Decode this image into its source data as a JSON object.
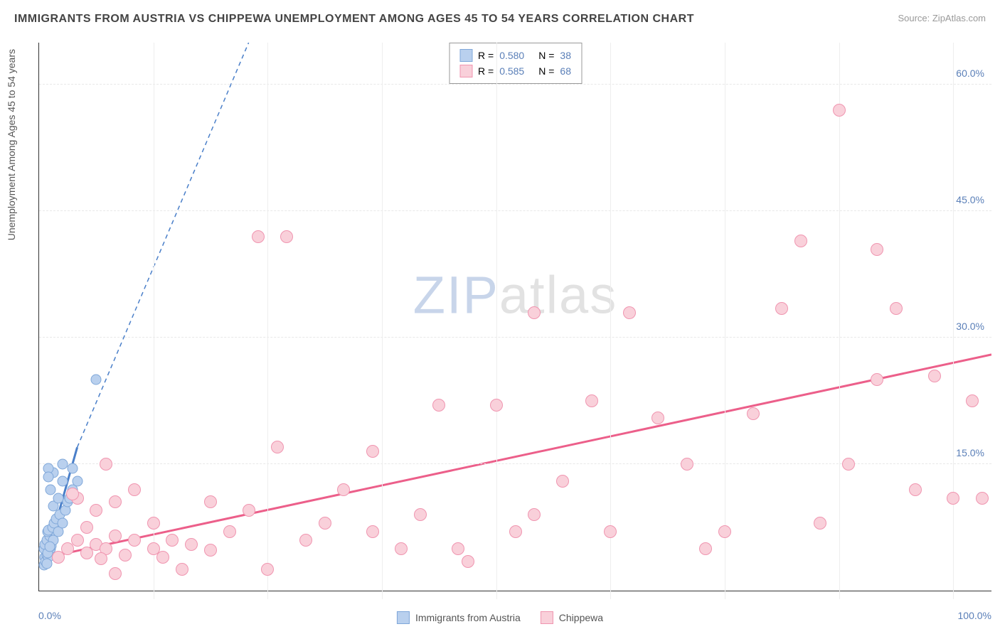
{
  "header": {
    "title": "IMMIGRANTS FROM AUSTRIA VS CHIPPEWA UNEMPLOYMENT AMONG AGES 45 TO 54 YEARS CORRELATION CHART",
    "source": "Source: ZipAtlas.com"
  },
  "chart": {
    "type": "scatter",
    "ylabel": "Unemployment Among Ages 45 to 54 years",
    "xlim": [
      0,
      100
    ],
    "ylim": [
      0,
      65
    ],
    "xticks": [
      {
        "v": 0,
        "label": "0.0%"
      },
      {
        "v": 100,
        "label": "100.0%"
      }
    ],
    "yticks": [
      {
        "v": 15,
        "label": "15.0%"
      },
      {
        "v": 30,
        "label": "30.0%"
      },
      {
        "v": 45,
        "label": "45.0%"
      },
      {
        "v": 60,
        "label": "60.0%"
      }
    ],
    "xgrid": [
      12,
      24,
      36,
      48,
      60,
      72,
      84,
      96
    ],
    "background_color": "#ffffff",
    "grid_color": "#e8e8e8",
    "tick_color": "#5a7fb8",
    "watermark": {
      "zip": "ZIP",
      "atlas": "atlas"
    },
    "series": [
      {
        "name": "Immigrants from Austria",
        "color_fill": "#b9d0ee",
        "color_stroke": "#7fa7d9",
        "marker_size": 15,
        "r": "0.580",
        "n": "38",
        "trend": {
          "x1": 0.5,
          "y1": 3,
          "x2": 4,
          "y2": 17,
          "dash_x2": 22,
          "dash_y2": 65,
          "color": "#4a7fc9",
          "width": 3
        },
        "points": [
          [
            0.5,
            3
          ],
          [
            0.6,
            4
          ],
          [
            0.7,
            3.5
          ],
          [
            0.8,
            4.2
          ],
          [
            0.5,
            5
          ],
          [
            0.6,
            5.5
          ],
          [
            1,
            4
          ],
          [
            1.2,
            5
          ],
          [
            0.8,
            6
          ],
          [
            1.1,
            6.5
          ],
          [
            1.3,
            5.3
          ],
          [
            0.9,
            7
          ],
          [
            1.5,
            6
          ],
          [
            1,
            7.2
          ],
          [
            1.4,
            7.5
          ],
          [
            1.6,
            8
          ],
          [
            2,
            7
          ],
          [
            1.8,
            8.5
          ],
          [
            2.2,
            9
          ],
          [
            1.5,
            10
          ],
          [
            2.5,
            8
          ],
          [
            2,
            11
          ],
          [
            2.8,
            9.5
          ],
          [
            1.2,
            12
          ],
          [
            3,
            10.5
          ],
          [
            2.5,
            13
          ],
          [
            3.2,
            11
          ],
          [
            3.5,
            12
          ],
          [
            1.5,
            14
          ],
          [
            4,
            13
          ],
          [
            1,
            14.5
          ],
          [
            1,
            13.5
          ],
          [
            2.5,
            15
          ],
          [
            3.5,
            14.5
          ],
          [
            6,
            25
          ],
          [
            0.8,
            3.2
          ],
          [
            0.9,
            4.5
          ],
          [
            1.1,
            5.2
          ]
        ]
      },
      {
        "name": "Chippewa",
        "color_fill": "#f9d0da",
        "color_stroke": "#f095b0",
        "marker_size": 18,
        "r": "0.585",
        "n": "68",
        "trend": {
          "x1": 1,
          "y1": 4,
          "x2": 100,
          "y2": 28,
          "color": "#ec5f8a",
          "width": 3
        },
        "points": [
          [
            2,
            4
          ],
          [
            3,
            5
          ],
          [
            5,
            4.5
          ],
          [
            6,
            5.5
          ],
          [
            4,
            6
          ],
          [
            7,
            5
          ],
          [
            8,
            6.5
          ],
          [
            5,
            7.5
          ],
          [
            10,
            6
          ],
          [
            6,
            9.5
          ],
          [
            4,
            11
          ],
          [
            12,
            5
          ],
          [
            8,
            10.5
          ],
          [
            14,
            6
          ],
          [
            10,
            12
          ],
          [
            16,
            5.5
          ],
          [
            7,
            15
          ],
          [
            13,
            4
          ],
          [
            18,
            10.5
          ],
          [
            20,
            7
          ],
          [
            15,
            2.5
          ],
          [
            8,
            2
          ],
          [
            22,
            9.5
          ],
          [
            25,
            17
          ],
          [
            28,
            6
          ],
          [
            30,
            8
          ],
          [
            32,
            12
          ],
          [
            24,
            2.5
          ],
          [
            35,
            16.5
          ],
          [
            38,
            5
          ],
          [
            40,
            9
          ],
          [
            42,
            22
          ],
          [
            45,
            3.5
          ],
          [
            48,
            22
          ],
          [
            50,
            7
          ],
          [
            52,
            9
          ],
          [
            55,
            13
          ],
          [
            58,
            22.5
          ],
          [
            60,
            7
          ],
          [
            62,
            33
          ],
          [
            65,
            20.5
          ],
          [
            68,
            15
          ],
          [
            70,
            5
          ],
          [
            72,
            7
          ],
          [
            75,
            21
          ],
          [
            78,
            33.5
          ],
          [
            80,
            41.5
          ],
          [
            82,
            8
          ],
          [
            85,
            15
          ],
          [
            88,
            40.5
          ],
          [
            90,
            33.5
          ],
          [
            92,
            12
          ],
          [
            94,
            25.5
          ],
          [
            96,
            11
          ],
          [
            98,
            22.5
          ],
          [
            99,
            11
          ],
          [
            23,
            42
          ],
          [
            84,
            57
          ],
          [
            88,
            25
          ],
          [
            44,
            5
          ],
          [
            26,
            42
          ],
          [
            52,
            33
          ],
          [
            35,
            7
          ],
          [
            18,
            4.8
          ],
          [
            12,
            8
          ],
          [
            9,
            4.2
          ],
          [
            6.5,
            3.8
          ],
          [
            3.5,
            11.5
          ]
        ]
      }
    ],
    "legend_series": [
      {
        "label": "Immigrants from Austria",
        "fill": "#b9d0ee",
        "stroke": "#7fa7d9"
      },
      {
        "label": "Chippewa",
        "fill": "#f9d0da",
        "stroke": "#f095b0"
      }
    ]
  }
}
